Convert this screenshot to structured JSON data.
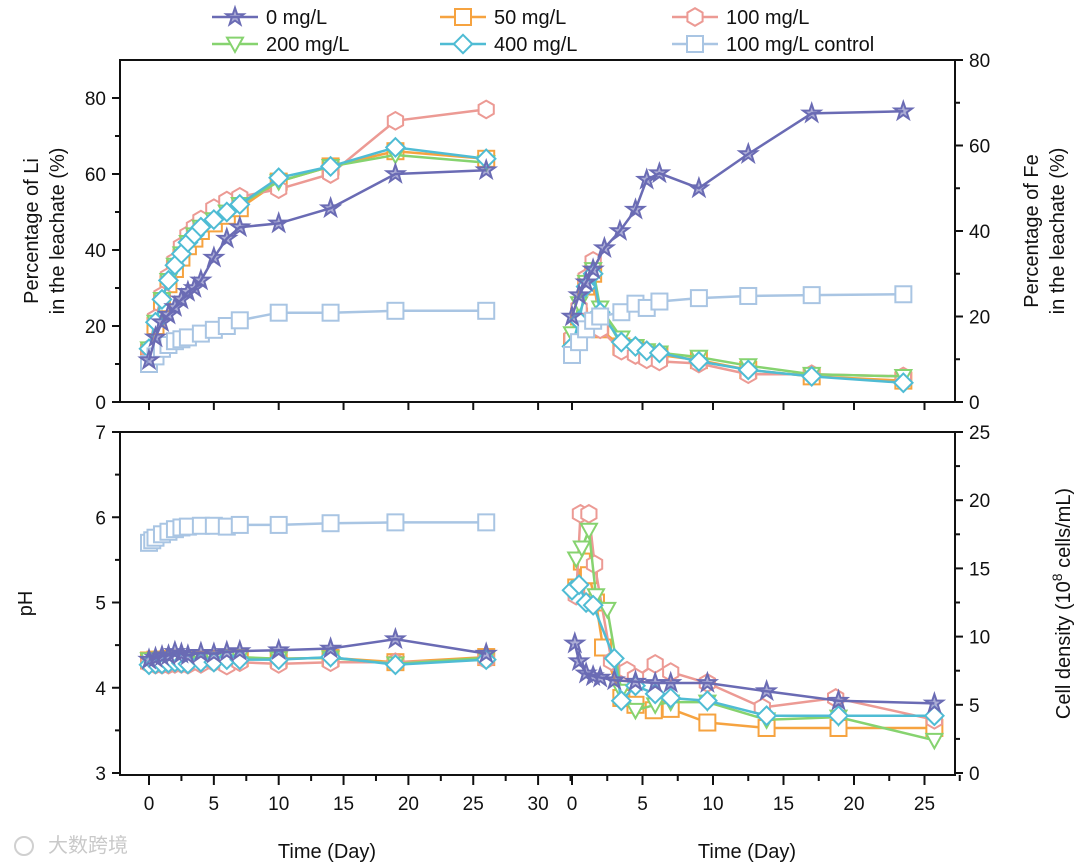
{
  "legend": [
    {
      "name": "0 mg/L",
      "color": "#6a6bb4",
      "marker": "star"
    },
    {
      "name": "50 mg/L",
      "color": "#f6a340",
      "marker": "square"
    },
    {
      "name": "100 mg/L",
      "color": "#ec9a94",
      "marker": "hexagon"
    },
    {
      "name": "200 mg/L",
      "color": "#86d36f",
      "marker": "triangle-down"
    },
    {
      "name": "400 mg/L",
      "color": "#4fbcd4",
      "marker": "diamond"
    },
    {
      "name": "100 mg/L control",
      "color": "#a9c5e3",
      "marker": "square"
    }
  ],
  "watermark": "大数跨境",
  "chart_data": [
    {
      "type": "line",
      "panel": "top-left",
      "xlabel": "",
      "ylabel": [
        "Percentage of Li",
        "in the leachate (%)"
      ],
      "xlim": [
        -2,
        31
      ],
      "ylim": [
        0,
        90
      ],
      "yticks": [
        0,
        20,
        40,
        60,
        80
      ],
      "xticks": [
        0,
        5,
        10,
        15,
        20,
        25,
        30
      ],
      "series": [
        {
          "name": "0 mg/L",
          "x": [
            0,
            0.5,
            1,
            1.5,
            2,
            2.5,
            3,
            3.5,
            4,
            5,
            6,
            7,
            10,
            14,
            19,
            26
          ],
          "y": [
            11,
            17,
            21,
            23,
            25,
            27,
            29,
            30,
            32,
            38,
            43,
            46,
            47,
            51,
            60,
            61
          ]
        },
        {
          "name": "50 mg/L",
          "x": [
            0,
            0.5,
            1,
            1.5,
            2,
            2.5,
            3,
            3.5,
            4,
            5,
            6,
            7,
            10,
            14,
            19,
            26
          ],
          "y": [
            13,
            20,
            26,
            31,
            35,
            38,
            41,
            43,
            45,
            47,
            49,
            51,
            58,
            62,
            66,
            64
          ]
        },
        {
          "name": "100 mg/L",
          "x": [
            0,
            0.5,
            1,
            1.5,
            2,
            2.5,
            3,
            3.5,
            4,
            5,
            6,
            7,
            10,
            14,
            19,
            26
          ],
          "y": [
            14,
            22,
            28,
            33,
            37,
            41,
            44,
            46,
            48,
            51,
            53,
            54,
            56,
            60,
            74,
            77
          ]
        },
        {
          "name": "200 mg/L",
          "x": [
            0,
            0.5,
            1,
            1.5,
            2,
            2.5,
            3,
            3.5,
            4,
            5,
            6,
            7,
            10,
            14,
            19,
            26
          ],
          "y": [
            14,
            21,
            27,
            32,
            36,
            39,
            42,
            44,
            46,
            48,
            50,
            52,
            58,
            62,
            65,
            63
          ]
        },
        {
          "name": "400 mg/L",
          "x": [
            0,
            0.5,
            1,
            1.5,
            2,
            2.5,
            3,
            3.5,
            4,
            5,
            6,
            7,
            10,
            14,
            19,
            26
          ],
          "y": [
            14,
            21,
            27,
            32,
            36,
            39,
            42,
            44,
            46,
            48,
            50,
            52,
            59,
            62,
            67,
            64
          ]
        },
        {
          "name": "100 mg/L control",
          "x": [
            0,
            0.5,
            1,
            1.5,
            2,
            2.5,
            3,
            4,
            5,
            6,
            7,
            10,
            14,
            19,
            26
          ],
          "y": [
            10,
            12,
            14,
            15,
            16,
            16.5,
            17,
            18,
            19,
            20,
            21.5,
            23.5,
            23.5,
            24,
            24
          ]
        }
      ]
    },
    {
      "type": "line",
      "panel": "top-right",
      "xlabel": "",
      "ylabel": [
        "Percentage of Fe",
        "in the leachate (%)"
      ],
      "xlim": [
        -2,
        27
      ],
      "ylim": [
        0,
        80
      ],
      "yticks": [
        0,
        20,
        40,
        60,
        80
      ],
      "xticks": [
        0,
        5,
        10,
        15,
        20,
        25
      ],
      "series": [
        {
          "name": "0 mg/L",
          "x": [
            0,
            0.5,
            1,
            1.5,
            2.3,
            3.4,
            4.5,
            5.3,
            6.2,
            9,
            12.5,
            17,
            23.5
          ],
          "y": [
            20,
            25,
            28,
            31,
            36,
            40,
            45,
            52,
            53.5,
            50,
            58,
            67.5,
            68
          ]
        },
        {
          "name": "50 mg/L",
          "x": [
            0,
            0.5,
            1,
            1.5,
            2,
            3.5,
            4.5,
            5.3,
            6.2,
            9,
            12.5,
            17,
            23.5
          ],
          "y": [
            14,
            20,
            27,
            30,
            17,
            13,
            12.5,
            11.5,
            11,
            9.8,
            7.5,
            6,
            5
          ]
        },
        {
          "name": "100 mg/L",
          "x": [
            0,
            0.5,
            1,
            1.5,
            2,
            3.5,
            4.5,
            5.3,
            6.2,
            9,
            12.5,
            17,
            23.5
          ],
          "y": [
            15,
            22,
            29,
            33,
            17,
            12,
            11,
            10,
            9.5,
            9,
            6.5,
            6.5,
            6
          ]
        },
        {
          "name": "200 mg/L",
          "x": [
            0,
            0.5,
            1,
            1.5,
            2,
            3.5,
            4.5,
            5.3,
            6.2,
            9,
            12.5,
            17,
            23.5
          ],
          "y": [
            16,
            23,
            28,
            31,
            22,
            15,
            13,
            12,
            11.5,
            10.5,
            8.5,
            6.5,
            6
          ]
        },
        {
          "name": "400 mg/L",
          "x": [
            0,
            0.5,
            1,
            1.5,
            2,
            3.5,
            4.5,
            5.3,
            6.2,
            9,
            12.5,
            17,
            23.5
          ],
          "y": [
            13,
            19,
            27,
            30,
            21,
            14,
            13,
            12,
            11.5,
            9.5,
            7.5,
            6,
            4.5
          ]
        },
        {
          "name": "100 mg/L control",
          "x": [
            0,
            0.5,
            1,
            1.5,
            2,
            3.5,
            4.5,
            5.3,
            6.2,
            9,
            12.5,
            17,
            23.5
          ],
          "y": [
            11,
            14,
            17,
            19,
            20,
            21,
            23,
            22,
            23.5,
            24.3,
            24.8,
            25,
            25.2
          ]
        }
      ]
    },
    {
      "type": "line",
      "panel": "bottom-left",
      "xlabel": "Time (Day)",
      "ylabel": [
        "pH"
      ],
      "xlim": [
        -2,
        31
      ],
      "ylim": [
        3,
        7
      ],
      "yticks": [
        3,
        4,
        5,
        6,
        7
      ],
      "xticks": [
        0,
        5,
        10,
        15,
        20,
        25,
        30
      ],
      "series": [
        {
          "name": "0 mg/L",
          "x": [
            0,
            0.5,
            1,
            1.5,
            2,
            2.5,
            3,
            4,
            5,
            6,
            7,
            10,
            14,
            19,
            26
          ],
          "y": [
            4.33,
            4.35,
            4.37,
            4.38,
            4.42,
            4.4,
            4.38,
            4.41,
            4.4,
            4.42,
            4.43,
            4.44,
            4.46,
            4.57,
            4.4
          ]
        },
        {
          "name": "50 mg/L",
          "x": [
            0,
            0.5,
            1,
            1.5,
            2,
            2.5,
            3,
            4,
            5,
            6,
            7,
            10,
            14,
            19,
            26
          ],
          "y": [
            4.32,
            4.33,
            4.33,
            4.34,
            4.34,
            4.33,
            4.33,
            4.33,
            4.34,
            4.35,
            4.35,
            4.34,
            4.35,
            4.3,
            4.36
          ]
        },
        {
          "name": "100 mg/L",
          "x": [
            0,
            0.5,
            1,
            1.5,
            2,
            2.5,
            3,
            4,
            5,
            6,
            7,
            10,
            14,
            19,
            26
          ],
          "y": [
            4.28,
            4.27,
            4.27,
            4.27,
            4.28,
            4.28,
            4.27,
            4.28,
            4.3,
            4.26,
            4.3,
            4.28,
            4.3,
            4.3,
            4.33
          ]
        },
        {
          "name": "200 mg/L",
          "x": [
            0,
            0.5,
            1,
            1.5,
            2,
            2.5,
            3,
            4,
            5,
            6,
            7,
            10,
            14,
            19,
            26
          ],
          "y": [
            4.33,
            4.33,
            4.34,
            4.33,
            4.34,
            4.33,
            4.34,
            4.33,
            4.33,
            4.35,
            4.36,
            4.34,
            4.35,
            4.28,
            4.35
          ]
        },
        {
          "name": "400 mg/L",
          "x": [
            0,
            0.5,
            1,
            1.5,
            2,
            2.5,
            3,
            4,
            5,
            6,
            7,
            10,
            14,
            19,
            26
          ],
          "y": [
            4.27,
            4.28,
            4.28,
            4.29,
            4.3,
            4.29,
            4.28,
            4.3,
            4.3,
            4.33,
            4.33,
            4.33,
            4.36,
            4.27,
            4.33
          ]
        },
        {
          "name": "100 mg/L control",
          "x": [
            0,
            0.25,
            0.5,
            1,
            1.5,
            2,
            2.5,
            3,
            4,
            5,
            6,
            7,
            10,
            14,
            19,
            26
          ],
          "y": [
            5.7,
            5.73,
            5.76,
            5.8,
            5.83,
            5.86,
            5.88,
            5.89,
            5.9,
            5.9,
            5.89,
            5.91,
            5.91,
            5.93,
            5.94,
            5.94
          ]
        }
      ]
    },
    {
      "type": "line",
      "panel": "bottom-right",
      "xlabel": "Time (Day)",
      "ylabel": [
        "Cell density (10",
        "8",
        " cells/mL)"
      ],
      "xlim": [
        -2,
        27
      ],
      "ylim": [
        0,
        25
      ],
      "yticks": [
        0,
        5,
        10,
        15,
        20,
        25
      ],
      "xticks": [
        0,
        5,
        10,
        15,
        20,
        25
      ],
      "series": [
        {
          "name": "0 mg/L",
          "x": [
            0.2,
            0.5,
            1,
            1.5,
            2,
            3,
            4.5,
            5.9,
            7,
            9.6,
            13.8,
            18.9,
            25.7
          ],
          "y": [
            9.5,
            8.2,
            7.3,
            7.1,
            7,
            6.8,
            6.7,
            6.6,
            6.6,
            6.6,
            6,
            5.3,
            5.1
          ]
        },
        {
          "name": "50 mg/L",
          "x": [
            0.3,
            0.7,
            1.2,
            1.7,
            2.2,
            3.5,
            4.5,
            5.8,
            7,
            9.6,
            13.8,
            18.9,
            25.7
          ],
          "y": [
            13.6,
            15.5,
            14.5,
            12.5,
            9.2,
            5.5,
            5,
            4.6,
            4.7,
            3.7,
            3.3,
            3.3,
            3.3
          ]
        },
        {
          "name": "100 mg/L",
          "x": [
            0.3,
            0.6,
            1.2,
            1.6,
            2.8,
            3.9,
            4.5,
            5.9,
            7,
            9.6,
            13.5,
            18.7,
            25.7
          ],
          "y": [
            13,
            19,
            19,
            15.3,
            8.2,
            7.5,
            7,
            8,
            7.4,
            6.6,
            4.8,
            5.5,
            3.9
          ]
        },
        {
          "name": "200 mg/L",
          "x": [
            0.3,
            0.7,
            1.2,
            1.7,
            2.5,
            3.5,
            4.5,
            5.9,
            7,
            9.6,
            13.8,
            18.9,
            25.7
          ],
          "y": [
            15.7,
            16.5,
            17.8,
            13,
            12,
            6,
            4.6,
            5,
            5.2,
            5.2,
            3.9,
            4.1,
            2.4
          ]
        },
        {
          "name": "400 mg/L",
          "x": [
            0,
            0.5,
            1,
            1.5,
            3,
            3.5,
            4.5,
            5.9,
            7,
            9.6,
            13.8,
            18.9,
            25.7
          ],
          "y": [
            13.4,
            13.8,
            12.5,
            12.3,
            8.4,
            5.3,
            6.4,
            5.8,
            5.5,
            5.3,
            4.2,
            4.2,
            4.2
          ]
        }
      ]
    }
  ]
}
